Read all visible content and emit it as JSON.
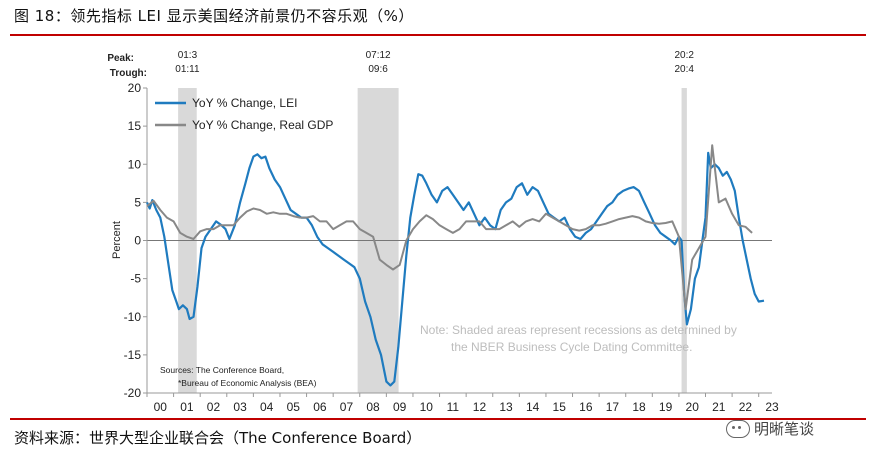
{
  "figure": {
    "title": "图 18：领先指标 LEI 显示美国经济前景仍不容乐观（%）",
    "source": "资料来源：世界大型企业联合会（The Conference Board）",
    "watermark": "明晰笔谈",
    "watermark_icon": "wechat-icon"
  },
  "chart_data": {
    "type": "line",
    "ylabel": "Percent",
    "ylim": [
      -20,
      20
    ],
    "xlim": [
      2000,
      2023.5
    ],
    "yticks": [
      "20",
      "15",
      "10",
      "5",
      "0",
      "-5",
      "-10",
      "-15",
      "-20"
    ],
    "xticks": [
      "00",
      "01",
      "02",
      "03",
      "04",
      "05",
      "06",
      "07",
      "08",
      "09",
      "10",
      "11",
      "12",
      "13",
      "14",
      "15",
      "16",
      "17",
      "18",
      "19",
      "20",
      "21",
      "22",
      "23"
    ],
    "peak_label": "Peak:",
    "trough_label": "Trough:",
    "recessions": [
      {
        "peak": "01:3",
        "trough": "01:11",
        "start": 2001.17,
        "end": 2001.87
      },
      {
        "peak": "07:12",
        "trough": "09:6",
        "start": 2007.92,
        "end": 2009.46
      },
      {
        "peak": "20:2",
        "trough": "20:4",
        "start": 2020.1,
        "end": 2020.3
      }
    ],
    "series": [
      {
        "name": "YoY % Change, LEI",
        "color": "#1f7bbf",
        "points": [
          [
            2000.0,
            5.0
          ],
          [
            2000.1,
            4.2
          ],
          [
            2000.2,
            5.3
          ],
          [
            2000.35,
            4.0
          ],
          [
            2000.5,
            3.0
          ],
          [
            2000.65,
            0.5
          ],
          [
            2000.8,
            -3.0
          ],
          [
            2000.95,
            -6.5
          ],
          [
            2001.1,
            -8.0
          ],
          [
            2001.2,
            -9.0
          ],
          [
            2001.35,
            -8.5
          ],
          [
            2001.5,
            -9.0
          ],
          [
            2001.6,
            -10.3
          ],
          [
            2001.75,
            -10.0
          ],
          [
            2001.9,
            -6.0
          ],
          [
            2002.05,
            -1.0
          ],
          [
            2002.2,
            0.5
          ],
          [
            2002.4,
            1.5
          ],
          [
            2002.6,
            2.5
          ],
          [
            2002.8,
            2.0
          ],
          [
            2002.95,
            1.5
          ],
          [
            2003.1,
            0.2
          ],
          [
            2003.3,
            2.0
          ],
          [
            2003.5,
            5.0
          ],
          [
            2003.7,
            7.5
          ],
          [
            2003.85,
            9.5
          ],
          [
            2004.0,
            11.0
          ],
          [
            2004.15,
            11.3
          ],
          [
            2004.3,
            10.8
          ],
          [
            2004.45,
            11.0
          ],
          [
            2004.6,
            9.5
          ],
          [
            2004.8,
            8.0
          ],
          [
            2005.0,
            7.0
          ],
          [
            2005.2,
            5.5
          ],
          [
            2005.4,
            4.0
          ],
          [
            2005.6,
            3.5
          ],
          [
            2005.8,
            3.0
          ],
          [
            2006.0,
            3.0
          ],
          [
            2006.2,
            2.0
          ],
          [
            2006.4,
            0.5
          ],
          [
            2006.6,
            -0.5
          ],
          [
            2006.8,
            -1.0
          ],
          [
            2007.0,
            -1.5
          ],
          [
            2007.2,
            -2.0
          ],
          [
            2007.4,
            -2.5
          ],
          [
            2007.6,
            -3.0
          ],
          [
            2007.8,
            -3.5
          ],
          [
            2008.0,
            -5.0
          ],
          [
            2008.2,
            -8.0
          ],
          [
            2008.4,
            -10.0
          ],
          [
            2008.6,
            -13.0
          ],
          [
            2008.8,
            -15.0
          ],
          [
            2009.0,
            -18.5
          ],
          [
            2009.15,
            -19.0
          ],
          [
            2009.3,
            -18.5
          ],
          [
            2009.45,
            -14.0
          ],
          [
            2009.6,
            -8.0
          ],
          [
            2009.75,
            -2.0
          ],
          [
            2009.9,
            3.0
          ],
          [
            2010.05,
            6.0
          ],
          [
            2010.2,
            8.7
          ],
          [
            2010.35,
            8.5
          ],
          [
            2010.5,
            7.5
          ],
          [
            2010.7,
            6.0
          ],
          [
            2010.9,
            5.0
          ],
          [
            2011.1,
            6.5
          ],
          [
            2011.3,
            7.0
          ],
          [
            2011.5,
            6.0
          ],
          [
            2011.7,
            5.0
          ],
          [
            2011.9,
            4.0
          ],
          [
            2012.1,
            5.0
          ],
          [
            2012.3,
            3.5
          ],
          [
            2012.5,
            2.0
          ],
          [
            2012.7,
            3.0
          ],
          [
            2012.9,
            2.0
          ],
          [
            2013.1,
            1.5
          ],
          [
            2013.3,
            4.0
          ],
          [
            2013.5,
            5.0
          ],
          [
            2013.7,
            5.5
          ],
          [
            2013.9,
            7.0
          ],
          [
            2014.1,
            7.5
          ],
          [
            2014.3,
            6.0
          ],
          [
            2014.5,
            7.0
          ],
          [
            2014.7,
            6.5
          ],
          [
            2014.9,
            5.0
          ],
          [
            2015.1,
            3.5
          ],
          [
            2015.3,
            3.0
          ],
          [
            2015.5,
            2.5
          ],
          [
            2015.7,
            3.0
          ],
          [
            2015.9,
            1.5
          ],
          [
            2016.1,
            0.5
          ],
          [
            2016.3,
            0.2
          ],
          [
            2016.5,
            1.0
          ],
          [
            2016.7,
            1.5
          ],
          [
            2016.9,
            2.5
          ],
          [
            2017.1,
            3.5
          ],
          [
            2017.3,
            4.5
          ],
          [
            2017.5,
            5.0
          ],
          [
            2017.7,
            6.0
          ],
          [
            2017.9,
            6.5
          ],
          [
            2018.1,
            6.8
          ],
          [
            2018.3,
            7.0
          ],
          [
            2018.5,
            6.5
          ],
          [
            2018.7,
            5.0
          ],
          [
            2018.9,
            3.5
          ],
          [
            2019.1,
            2.0
          ],
          [
            2019.3,
            1.0
          ],
          [
            2019.5,
            0.5
          ],
          [
            2019.7,
            0.0
          ],
          [
            2019.85,
            -0.5
          ],
          [
            2020.0,
            0.5
          ],
          [
            2020.1,
            0.0
          ],
          [
            2020.2,
            -7.0
          ],
          [
            2020.3,
            -11.0
          ],
          [
            2020.45,
            -9.0
          ],
          [
            2020.6,
            -5.0
          ],
          [
            2020.75,
            -3.5
          ],
          [
            2020.9,
            0.5
          ],
          [
            2021.0,
            3.0
          ],
          [
            2021.1,
            11.5
          ],
          [
            2021.2,
            9.5
          ],
          [
            2021.35,
            10.0
          ],
          [
            2021.5,
            9.5
          ],
          [
            2021.65,
            8.5
          ],
          [
            2021.8,
            9.0
          ],
          [
            2021.95,
            8.0
          ],
          [
            2022.1,
            6.5
          ],
          [
            2022.25,
            3.0
          ],
          [
            2022.4,
            0.0
          ],
          [
            2022.55,
            -2.5
          ],
          [
            2022.7,
            -5.0
          ],
          [
            2022.85,
            -7.0
          ],
          [
            2023.0,
            -8.0
          ],
          [
            2023.2,
            -7.9
          ]
        ]
      },
      {
        "name": "YoY % Change, Real GDP",
        "color": "#888888",
        "points": [
          [
            2000.0,
            4.5
          ],
          [
            2000.25,
            5.2
          ],
          [
            2000.5,
            4.0
          ],
          [
            2000.75,
            3.0
          ],
          [
            2001.0,
            2.5
          ],
          [
            2001.25,
            1.0
          ],
          [
            2001.5,
            0.5
          ],
          [
            2001.75,
            0.2
          ],
          [
            2002.0,
            1.2
          ],
          [
            2002.25,
            1.5
          ],
          [
            2002.5,
            1.5
          ],
          [
            2002.75,
            2.0
          ],
          [
            2003.0,
            2.0
          ],
          [
            2003.25,
            2.0
          ],
          [
            2003.5,
            3.0
          ],
          [
            2003.75,
            3.8
          ],
          [
            2004.0,
            4.2
          ],
          [
            2004.25,
            4.0
          ],
          [
            2004.5,
            3.5
          ],
          [
            2004.75,
            3.7
          ],
          [
            2005.0,
            3.5
          ],
          [
            2005.25,
            3.5
          ],
          [
            2005.5,
            3.2
          ],
          [
            2005.75,
            3.0
          ],
          [
            2006.0,
            3.0
          ],
          [
            2006.25,
            3.2
          ],
          [
            2006.5,
            2.5
          ],
          [
            2006.75,
            2.5
          ],
          [
            2007.0,
            1.5
          ],
          [
            2007.25,
            2.0
          ],
          [
            2007.5,
            2.5
          ],
          [
            2007.75,
            2.5
          ],
          [
            2008.0,
            1.5
          ],
          [
            2008.25,
            1.0
          ],
          [
            2008.5,
            0.5
          ],
          [
            2008.75,
            -2.5
          ],
          [
            2009.0,
            -3.2
          ],
          [
            2009.25,
            -3.8
          ],
          [
            2009.5,
            -3.2
          ],
          [
            2009.75,
            0.0
          ],
          [
            2010.0,
            1.5
          ],
          [
            2010.25,
            2.5
          ],
          [
            2010.5,
            3.3
          ],
          [
            2010.75,
            2.8
          ],
          [
            2011.0,
            2.0
          ],
          [
            2011.25,
            1.5
          ],
          [
            2011.5,
            1.0
          ],
          [
            2011.75,
            1.5
          ],
          [
            2012.0,
            2.5
          ],
          [
            2012.25,
            2.5
          ],
          [
            2012.5,
            2.5
          ],
          [
            2012.75,
            1.5
          ],
          [
            2013.0,
            1.5
          ],
          [
            2013.25,
            1.5
          ],
          [
            2013.5,
            2.0
          ],
          [
            2013.75,
            2.5
          ],
          [
            2014.0,
            1.8
          ],
          [
            2014.25,
            2.5
          ],
          [
            2014.5,
            2.8
          ],
          [
            2014.75,
            2.5
          ],
          [
            2015.0,
            3.5
          ],
          [
            2015.25,
            3.0
          ],
          [
            2015.5,
            2.5
          ],
          [
            2015.75,
            2.0
          ],
          [
            2016.0,
            1.5
          ],
          [
            2016.25,
            1.3
          ],
          [
            2016.5,
            1.5
          ],
          [
            2016.75,
            2.0
          ],
          [
            2017.0,
            2.0
          ],
          [
            2017.25,
            2.2
          ],
          [
            2017.5,
            2.5
          ],
          [
            2017.75,
            2.8
          ],
          [
            2018.0,
            3.0
          ],
          [
            2018.25,
            3.2
          ],
          [
            2018.5,
            3.0
          ],
          [
            2018.75,
            2.5
          ],
          [
            2019.0,
            2.3
          ],
          [
            2019.25,
            2.2
          ],
          [
            2019.5,
            2.3
          ],
          [
            2019.75,
            2.5
          ],
          [
            2020.0,
            0.5
          ],
          [
            2020.25,
            -9.0
          ],
          [
            2020.5,
            -2.5
          ],
          [
            2020.75,
            -1.0
          ],
          [
            2021.0,
            0.5
          ],
          [
            2021.25,
            12.5
          ],
          [
            2021.5,
            5.0
          ],
          [
            2021.75,
            5.5
          ],
          [
            2022.0,
            3.5
          ],
          [
            2022.25,
            2.0
          ],
          [
            2022.5,
            1.8
          ],
          [
            2022.75,
            1.0
          ]
        ]
      }
    ],
    "sources_note": [
      "Sources: The Conference Board,",
      "*Bureau of Economic Analysis (BEA)"
    ],
    "shading_note": [
      "Note: Shaded areas represent recessions as determined by",
      "the NBER Business Cycle Dating Committee."
    ],
    "legend_position": "top-left",
    "grid": false
  }
}
